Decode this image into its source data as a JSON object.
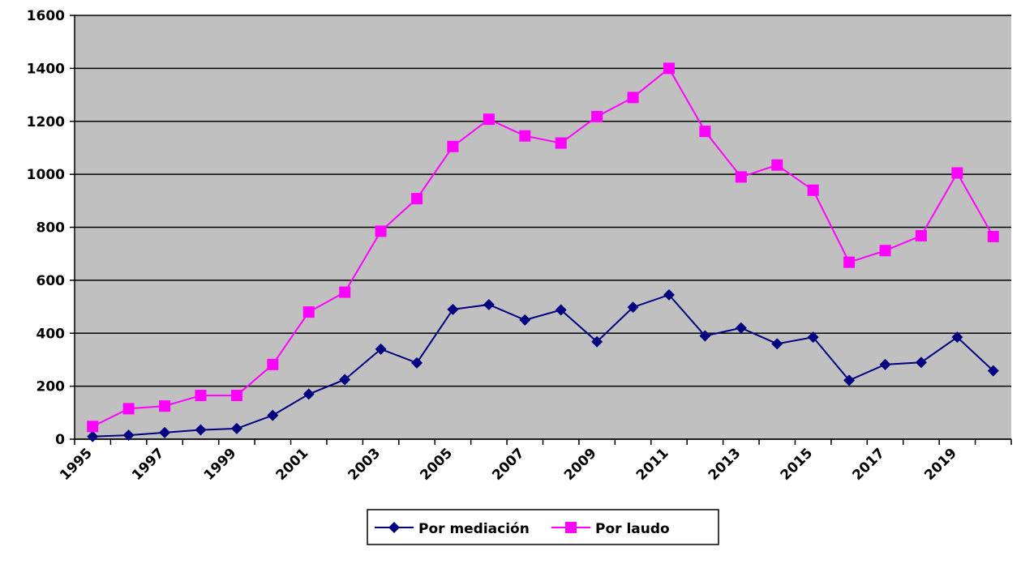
{
  "chart_data": {
    "type": "line",
    "categories": [
      "1995",
      null,
      "1997",
      null,
      "1999",
      null,
      "2001",
      null,
      "2003",
      null,
      "2005",
      null,
      "2007",
      null,
      "2009",
      null,
      "2011",
      null,
      "2013",
      null,
      "2015",
      null,
      "2017",
      null,
      "2019",
      null
    ],
    "series": [
      {
        "name": "Por mediación",
        "color": "#000080",
        "marker": "diamond",
        "values": [
          10,
          15,
          25,
          35,
          40,
          90,
          170,
          225,
          340,
          288,
          490,
          508,
          450,
          488,
          368,
          498,
          545,
          390,
          420,
          360,
          385,
          222,
          282,
          290,
          385,
          258
        ]
      },
      {
        "name": "Por laudo",
        "color": "#ff00ff",
        "marker": "square",
        "values": [
          48,
          115,
          125,
          165,
          165,
          282,
          480,
          555,
          785,
          908,
          1105,
          1208,
          1145,
          1118,
          1218,
          1290,
          1400,
          1162,
          990,
          1035,
          940,
          668,
          712,
          768,
          1005,
          765
        ]
      }
    ],
    "ylim": [
      0,
      1600
    ],
    "yticks": [
      0,
      200,
      400,
      600,
      800,
      1000,
      1200,
      1400,
      1600
    ],
    "grid": true,
    "legend": "bottom"
  }
}
